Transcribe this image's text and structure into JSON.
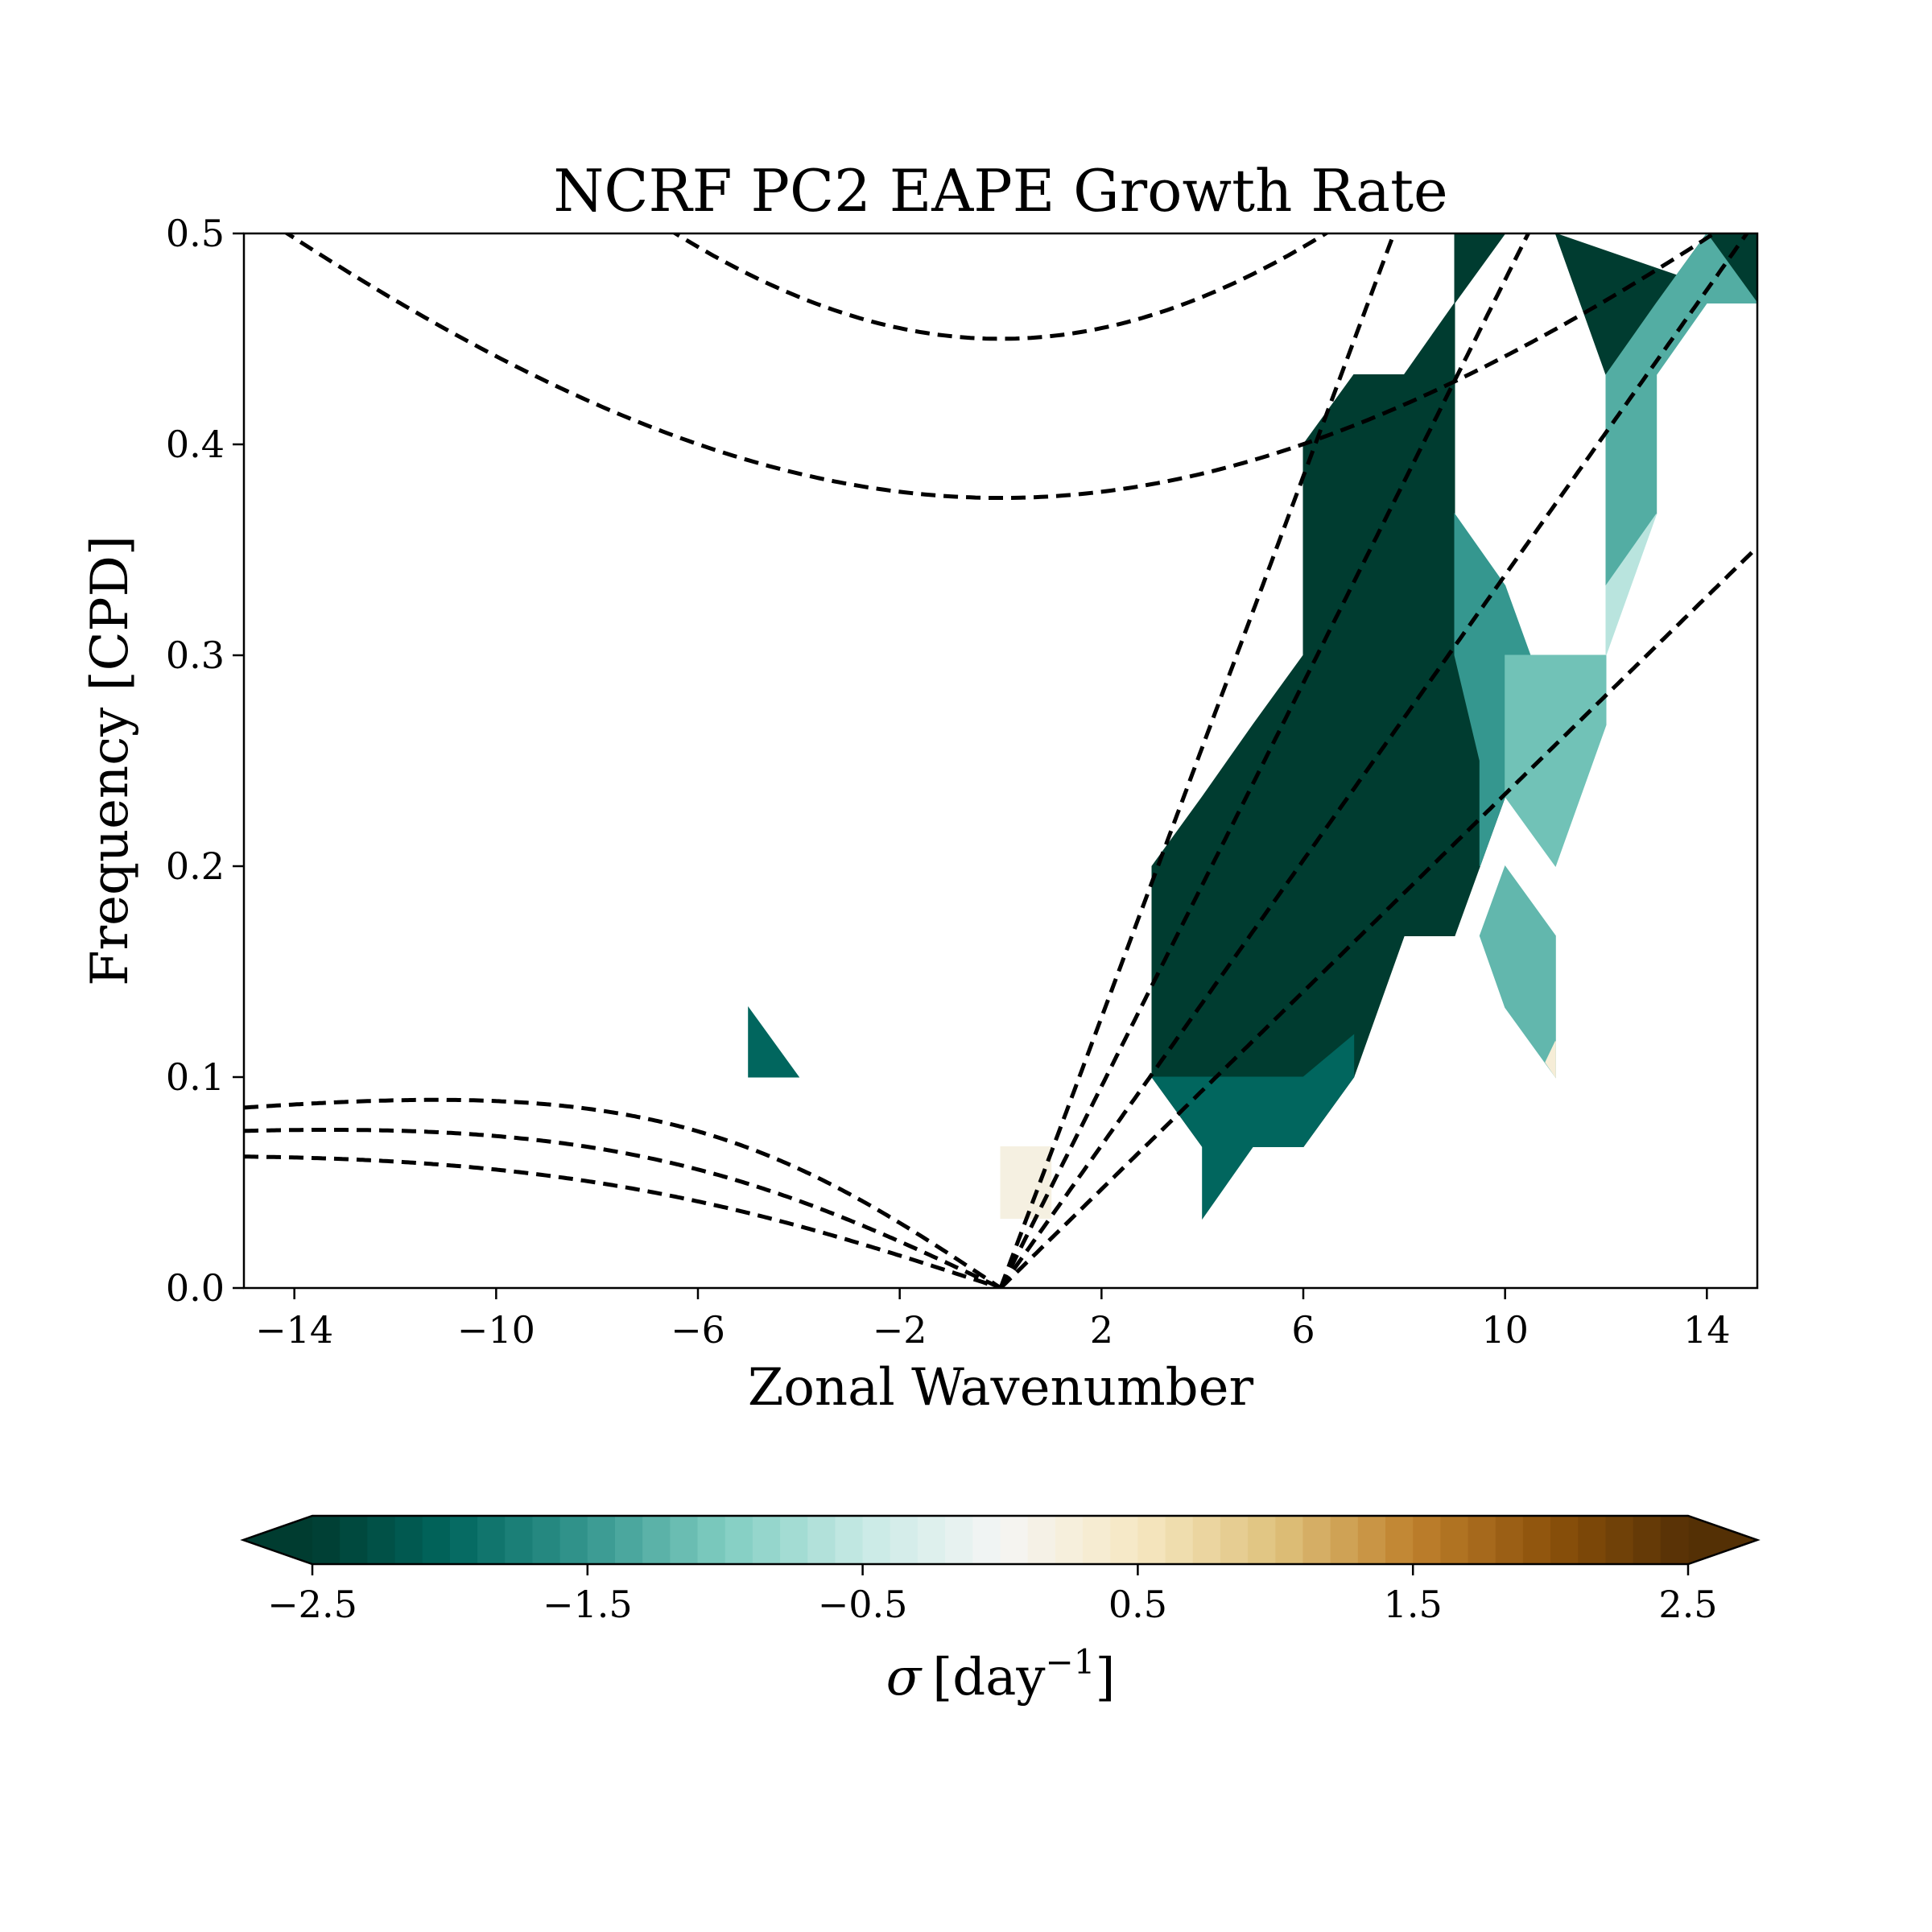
{
  "chart_data": {
    "type": "heatmap",
    "title": "NCRF PC2 EAPE Growth Rate",
    "xlabel": "Zonal Wavenumber",
    "ylabel": "Frequency [CPD]",
    "xlim": [
      -15,
      15
    ],
    "ylim": [
      0,
      0.5
    ],
    "xticks": [
      -14,
      -10,
      -6,
      -2,
      2,
      6,
      10,
      14
    ],
    "xtick_labels": [
      "−14",
      "−10",
      "−6",
      "−2",
      "2",
      "6",
      "10",
      "14"
    ],
    "yticks": [
      0.0,
      0.1,
      0.2,
      0.3,
      0.4,
      0.5
    ],
    "ytick_labels": [
      "0.0",
      "0.1",
      "0.2",
      "0.3",
      "0.4",
      "0.5"
    ],
    "grid": false,
    "colormap": "BrBG_r",
    "colorbar": {
      "label_symbol": "σ",
      "label_units": "[day",
      "label_exponent": "−1",
      "label_close": "]",
      "vmin": -2.5,
      "vmax": 2.5,
      "extend": "both",
      "ticks": [
        -2.5,
        -1.5,
        -0.5,
        0.5,
        1.5,
        2.5
      ],
      "tick_labels": [
        "−2.5",
        "−1.5",
        "−0.5",
        "0.5",
        "1.5",
        "2.5"
      ],
      "placement": "bottom"
    },
    "regions": [
      {
        "sigma": -2.5,
        "polygon": [
          [
            3,
            0.1
          ],
          [
            3,
            0.2
          ],
          [
            4,
            0.233
          ],
          [
            5,
            0.267
          ],
          [
            6,
            0.3
          ],
          [
            6,
            0.4
          ],
          [
            7,
            0.433
          ],
          [
            8,
            0.433
          ],
          [
            9,
            0.467
          ],
          [
            9,
            0.367
          ],
          [
            10,
            0.3
          ],
          [
            10,
            0.233
          ],
          [
            9,
            0.167
          ],
          [
            8,
            0.167
          ],
          [
            7,
            0.1
          ],
          [
            6,
            0.067
          ],
          [
            5,
            0.067
          ],
          [
            4,
            0.067
          ]
        ]
      },
      {
        "sigma": -2.0,
        "polygon": [
          [
            3,
            0.1
          ],
          [
            4,
            0.067
          ],
          [
            4,
            0.033
          ],
          [
            5,
            0.067
          ],
          [
            6,
            0.067
          ],
          [
            7,
            0.1
          ],
          [
            7,
            0.12
          ],
          [
            6,
            0.1
          ],
          [
            5,
            0.1
          ],
          [
            4,
            0.1
          ]
        ]
      },
      {
        "sigma": -1.5,
        "polygon": [
          [
            9,
            0.367
          ],
          [
            10,
            0.333
          ],
          [
            10.5,
            0.3
          ],
          [
            10,
            0.233
          ],
          [
            9.5,
            0.2
          ],
          [
            9.5,
            0.25
          ],
          [
            9,
            0.3
          ]
        ]
      },
      {
        "sigma": -1.2,
        "polygon": [
          [
            10,
            0.2
          ],
          [
            11,
            0.167
          ],
          [
            11,
            0.1
          ],
          [
            10,
            0.133
          ],
          [
            9.5,
            0.167
          ]
        ]
      },
      {
        "sigma": -1.1,
        "polygon": [
          [
            10,
            0.3
          ],
          [
            11,
            0.3
          ],
          [
            12,
            0.3
          ],
          [
            12,
            0.267
          ],
          [
            11,
            0.2
          ],
          [
            10,
            0.233
          ]
        ]
      },
      {
        "sigma": -2.5,
        "polygon": [
          [
            9,
            0.5
          ],
          [
            9,
            0.467
          ],
          [
            10,
            0.5
          ]
        ]
      },
      {
        "sigma": -2.5,
        "polygon": [
          [
            11,
            0.5
          ],
          [
            12,
            0.433
          ],
          [
            13,
            0.467
          ],
          [
            14,
            0.5
          ],
          [
            15,
            0.5
          ],
          [
            15,
            0.467
          ]
        ]
      },
      {
        "sigma": -1.3,
        "polygon": [
          [
            12,
            0.433
          ],
          [
            12,
            0.333
          ],
          [
            13,
            0.367
          ],
          [
            13,
            0.433
          ],
          [
            14,
            0.467
          ],
          [
            15,
            0.467
          ],
          [
            14,
            0.5
          ],
          [
            13,
            0.467
          ]
        ]
      },
      {
        "sigma": -0.6,
        "polygon": [
          [
            12,
            0.333
          ],
          [
            12,
            0.3
          ],
          [
            13,
            0.367
          ]
        ]
      },
      {
        "sigma": -2.0,
        "polygon": [
          [
            -5,
            0.133
          ],
          [
            -5,
            0.1
          ],
          [
            -4,
            0.1
          ]
        ]
      },
      {
        "sigma": 0.2,
        "polygon": [
          [
            0,
            0.067
          ],
          [
            1,
            0.067
          ],
          [
            1,
            0.033
          ],
          [
            0,
            0.033
          ]
        ]
      },
      {
        "sigma": 0.3,
        "polygon": [
          [
            11,
            0.1
          ],
          [
            11,
            0.117
          ],
          [
            10.8,
            0.107
          ]
        ]
      }
    ],
    "dispersion_curves": [
      {
        "kind": "kelvin",
        "h": 12
      },
      {
        "kind": "kelvin",
        "h": 25
      },
      {
        "kind": "kelvin",
        "h": 50
      },
      {
        "kind": "kelvin",
        "h": 90
      },
      {
        "kind": "rossby",
        "n": 1,
        "h": 12
      },
      {
        "kind": "rossby",
        "n": 1,
        "h": 25
      },
      {
        "kind": "rossby",
        "n": 1,
        "h": 50
      },
      {
        "kind": "igw",
        "n": 1,
        "h": 12
      },
      {
        "kind": "igw",
        "n": 1,
        "h": 25
      }
    ]
  }
}
